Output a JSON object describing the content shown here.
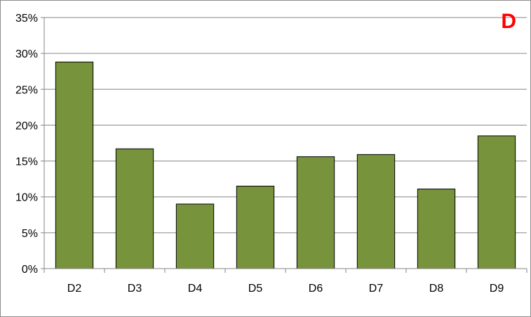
{
  "chart_data": {
    "type": "bar",
    "panel_label": "D",
    "categories": [
      "D2",
      "D3",
      "D4",
      "D5",
      "D6",
      "D7",
      "D8",
      "D9"
    ],
    "values": [
      28.8,
      16.7,
      9.0,
      11.5,
      15.6,
      15.9,
      11.1,
      18.5
    ],
    "y_ticks": [
      "0%",
      "5%",
      "10%",
      "15%",
      "20%",
      "25%",
      "30%",
      "35%"
    ],
    "ylim": [
      0,
      35
    ],
    "y_unit": "%",
    "grid": true,
    "legend": "none",
    "title": "",
    "xlabel": "",
    "ylabel": ""
  },
  "colors": {
    "bar_fill": "#77933c",
    "bar_stroke": "#000000",
    "grid": "#868686",
    "axis": "#868686",
    "panel_letter": "#ff0000"
  }
}
